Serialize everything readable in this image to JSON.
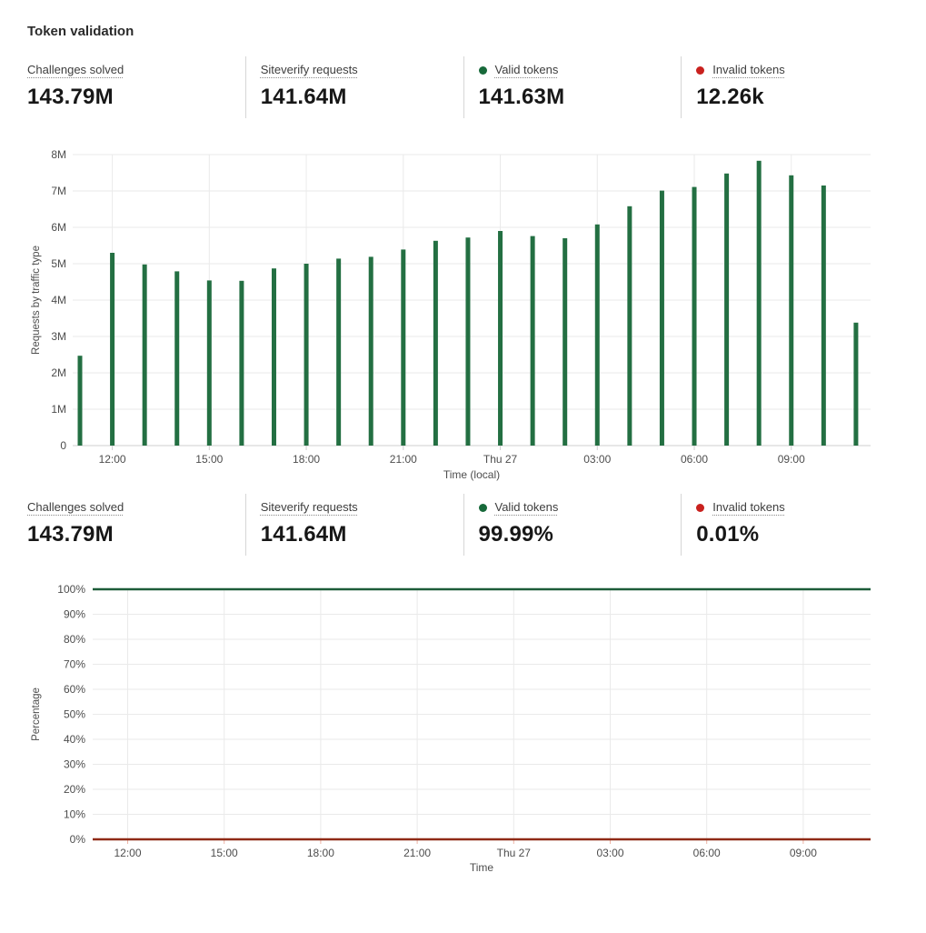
{
  "page_title": "Token validation",
  "colors": {
    "bar_green": "#236f42",
    "line_green": "#1d5c39",
    "line_red": "#8f2a16",
    "dot_green": "#17693a",
    "dot_red": "#c9211e",
    "grid_line": "#eaeaea",
    "axis_line": "#cfcfcf"
  },
  "stats_top": [
    {
      "label": "Challenges solved",
      "value": "143.79M"
    },
    {
      "label": "Siteverify requests",
      "value": "141.64M"
    },
    {
      "label": "Valid tokens",
      "value": "141.63M",
      "dot_color": "#17693a"
    },
    {
      "label": "Invalid tokens",
      "value": "12.26k",
      "dot_color": "#c9211e"
    }
  ],
  "stats_bottom": [
    {
      "label": "Challenges solved",
      "value": "143.79M"
    },
    {
      "label": "Siteverify requests",
      "value": "141.64M"
    },
    {
      "label": "Valid tokens",
      "value": "99.99%",
      "dot_color": "#17693a"
    },
    {
      "label": "Invalid tokens",
      "value": "0.01%",
      "dot_color": "#c9211e"
    }
  ],
  "chart_data": [
    {
      "type": "bar",
      "ylabel": "Requests by traffic type",
      "xlabel": "Time (local)",
      "ylim_millions": [
        0,
        8
      ],
      "ytick_labels": [
        "0",
        "1M",
        "2M",
        "3M",
        "4M",
        "5M",
        "6M",
        "7M",
        "8M"
      ],
      "grid": true,
      "bar_color": "#236f42",
      "values_millions": [
        2.47,
        5.3,
        4.98,
        4.79,
        4.54,
        4.53,
        4.87,
        5.0,
        5.14,
        5.19,
        5.39,
        5.63,
        5.72,
        5.9,
        5.76,
        5.7,
        6.08,
        6.58,
        7.01,
        7.11,
        7.48,
        7.83,
        7.43,
        7.15,
        3.38
      ],
      "xticks": [
        {
          "bar_index": 1,
          "label": "12:00"
        },
        {
          "bar_index": 4,
          "label": "15:00"
        },
        {
          "bar_index": 7,
          "label": "18:00"
        },
        {
          "bar_index": 10,
          "label": "21:00"
        },
        {
          "bar_index": 13,
          "label": "Thu 27"
        },
        {
          "bar_index": 16,
          "label": "03:00"
        },
        {
          "bar_index": 19,
          "label": "06:00"
        },
        {
          "bar_index": 22,
          "label": "09:00"
        }
      ]
    },
    {
      "type": "line",
      "ylabel": "Percentage",
      "xlabel": "Time",
      "ylim_percent": [
        0,
        100
      ],
      "ytick_labels": [
        "0%",
        "10%",
        "20%",
        "30%",
        "40%",
        "50%",
        "60%",
        "70%",
        "80%",
        "90%",
        "100%"
      ],
      "grid": true,
      "xtick_labels": [
        "12:00",
        "15:00",
        "18:00",
        "21:00",
        "Thu 27",
        "03:00",
        "06:00",
        "09:00"
      ],
      "series": [
        {
          "name": "Valid tokens",
          "color": "#1d5c39",
          "value_percent": 99.99
        },
        {
          "name": "Invalid tokens",
          "color": "#8f2a16",
          "value_percent": 0.01
        }
      ]
    }
  ]
}
